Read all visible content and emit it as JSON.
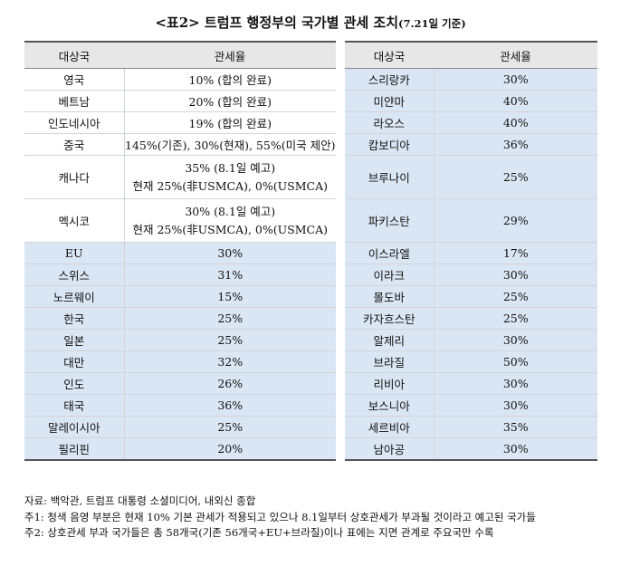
{
  "title": "<표2> 트럼프 행정부의 국가별 관세 조치",
  "title_date": "(7.21일 기준)",
  "headers": {
    "country": "대상국",
    "rate": "관세율"
  },
  "left_rows": [
    {
      "country": "영국",
      "rate": "10% (합의 완료)",
      "blue": false
    },
    {
      "country": "베트남",
      "rate": "20% (합의 완료)",
      "blue": false
    },
    {
      "country": "인도네시아",
      "rate": "19% (합의 완료)",
      "blue": false
    },
    {
      "country": "중국",
      "rate": "145%(기존), 30%(현재), 55%(미국 제안)",
      "blue": false
    },
    {
      "country": "캐나다",
      "rate_line1": "35% (8.1일 예고)",
      "rate_line2": "현재 25%(非USMCA), 0%(USMCA)",
      "blue": false
    },
    {
      "country": "멕시코",
      "rate_line1": "30% (8.1일 예고)",
      "rate_line2": "현재 25%(非USMCA), 0%(USMCA)",
      "blue": false
    },
    {
      "country": "EU",
      "rate": "30%",
      "blue": true
    },
    {
      "country": "스위스",
      "rate": "31%",
      "blue": true
    },
    {
      "country": "노르웨이",
      "rate": "15%",
      "blue": true
    },
    {
      "country": "한국",
      "rate": "25%",
      "blue": true
    },
    {
      "country": "일본",
      "rate": "25%",
      "blue": true
    },
    {
      "country": "대만",
      "rate": "32%",
      "blue": true
    },
    {
      "country": "인도",
      "rate": "26%",
      "blue": true
    },
    {
      "country": "태국",
      "rate": "36%",
      "blue": true
    },
    {
      "country": "말레이시아",
      "rate": "25%",
      "blue": true
    },
    {
      "country": "필리핀",
      "rate": "20%",
      "blue": true
    }
  ],
  "right_rows": [
    {
      "country": "스리랑카",
      "rate": "30%"
    },
    {
      "country": "미얀마",
      "rate": "40%"
    },
    {
      "country": "라오스",
      "rate": "40%"
    },
    {
      "country": "캄보디아",
      "rate": "36%"
    },
    {
      "country": "브루나이",
      "rate": "25%"
    },
    {
      "country": "파키스탄",
      "rate": "29%"
    },
    {
      "country": "이스라엘",
      "rate": "17%"
    },
    {
      "country": "이라크",
      "rate": "30%"
    },
    {
      "country": "몰도바",
      "rate": "25%"
    },
    {
      "country": "카자흐스탄",
      "rate": "25%"
    },
    {
      "country": "알제리",
      "rate": "30%"
    },
    {
      "country": "브라질",
      "rate": "50%"
    },
    {
      "country": "리비아",
      "rate": "30%"
    },
    {
      "country": "보스니아",
      "rate": "30%"
    },
    {
      "country": "세르비아",
      "rate": "35%"
    },
    {
      "country": "남아공",
      "rate": "30%"
    }
  ],
  "notes": [
    "자료: 백악관, 트럼프 대통령 소셜미디어, 내외신 종합",
    "주1: 청색 음영 부분은 현재 10% 기본 관세가 적용되고 있으나 8.1일부터 상호관세가 부과될 것이라고 예고된 국가들",
    "주2: 상호관세 부과 국가들은 총 58개국(기존 56개국+EU+브라질)이나 표에는 지면 관계로 주요국만 수록"
  ]
}
